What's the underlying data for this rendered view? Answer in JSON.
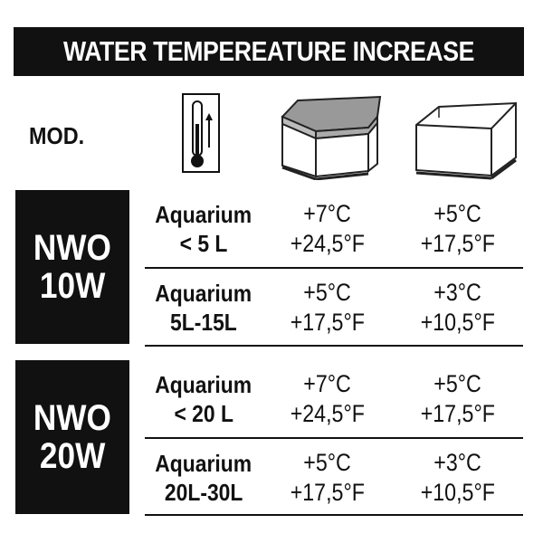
{
  "title": "WATER TEMPEREATURE INCREASE",
  "mod_label": "MOD.",
  "icons": [
    "thermometer-icon",
    "covered-aquarium-icon",
    "open-aquarium-icon"
  ],
  "colors": {
    "dark": "#111111",
    "light": "#ffffff"
  },
  "models": [
    {
      "line1": "NWO",
      "line2": "10W",
      "rows": [
        {
          "label1": "Aquarium",
          "label2": "< 5 L",
          "covered_c": "+7°C",
          "covered_f": "+24,5°F",
          "open_c": "+5°C",
          "open_f": "+17,5°F"
        },
        {
          "label1": "Aquarium",
          "label2": "5L-15L",
          "covered_c": "+5°C",
          "covered_f": "+17,5°F",
          "open_c": "+3°C",
          "open_f": "+10,5°F"
        }
      ]
    },
    {
      "line1": "NWO",
      "line2": "20W",
      "rows": [
        {
          "label1": "Aquarium",
          "label2": "< 20 L",
          "covered_c": "+7°C",
          "covered_f": "+24,5°F",
          "open_c": "+5°C",
          "open_f": "+17,5°F"
        },
        {
          "label1": "Aquarium",
          "label2": "20L-30L",
          "covered_c": "+5°C",
          "covered_f": "+17,5°F",
          "open_c": "+3°C",
          "open_f": "+10,5°F"
        }
      ]
    }
  ]
}
